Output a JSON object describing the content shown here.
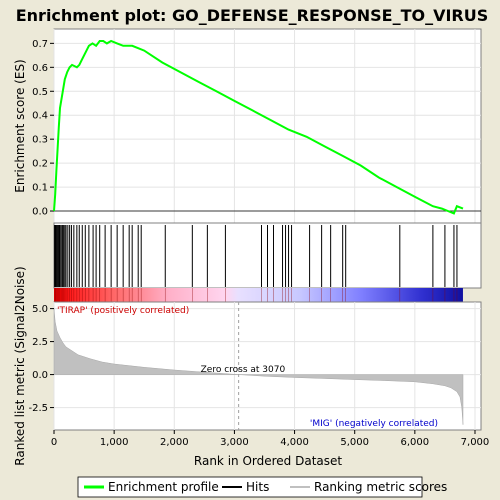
{
  "chart_data": {
    "type": "line",
    "title": "Enrichment plot: GO_DEFENSE_RESPONSE_TO_VIRUS",
    "xlabel": "Rank in Ordered Dataset",
    "ylabel_top": "Enrichment score (ES)",
    "ylabel_bottom": "Ranked list metric (Signal2Noise)",
    "xlim": [
      0,
      7100
    ],
    "x_ticks": [
      0,
      1000,
      2000,
      3000,
      4000,
      5000,
      6000,
      7000
    ],
    "x_tick_labels": [
      "0",
      "1,000",
      "2,000",
      "3,000",
      "4,000",
      "5,000",
      "6,000",
      "7,000"
    ],
    "es_ylim": [
      -0.05,
      0.76
    ],
    "es_ticks": [
      0.0,
      0.1,
      0.2,
      0.3,
      0.4,
      0.5,
      0.6,
      0.7
    ],
    "es_tick_labels": [
      "0.0",
      "0.1",
      "0.2",
      "0.3",
      "0.4",
      "0.5",
      "0.6",
      "0.7"
    ],
    "metric_ylim": [
      -4.2,
      5.5
    ],
    "metric_ticks": [
      5.0,
      2.5,
      0.0,
      -2.5
    ],
    "metric_tick_labels": [
      "5.0",
      "2.5",
      "0.0",
      "-2.5"
    ],
    "grid": true,
    "legend_position": "bottom",
    "series": [
      {
        "name": "Enrichment profile",
        "color": "#00ff00",
        "x": [
          0,
          20,
          40,
          60,
          80,
          100,
          140,
          180,
          220,
          260,
          300,
          380,
          420,
          460,
          500,
          540,
          580,
          640,
          700,
          760,
          820,
          880,
          950,
          1050,
          1150,
          1300,
          1400,
          1500,
          1800,
          2100,
          2400,
          2700,
          3000,
          3300,
          3600,
          3900,
          4200,
          4500,
          4800,
          5100,
          5400,
          5700,
          6000,
          6300,
          6450,
          6550,
          6650,
          6700,
          6800
        ],
        "y": [
          0.0,
          0.07,
          0.17,
          0.26,
          0.35,
          0.43,
          0.49,
          0.55,
          0.58,
          0.6,
          0.61,
          0.6,
          0.61,
          0.63,
          0.65,
          0.67,
          0.69,
          0.7,
          0.69,
          0.71,
          0.71,
          0.7,
          0.71,
          0.7,
          0.69,
          0.69,
          0.68,
          0.67,
          0.62,
          0.58,
          0.54,
          0.5,
          0.46,
          0.42,
          0.38,
          0.34,
          0.31,
          0.27,
          0.23,
          0.19,
          0.14,
          0.1,
          0.06,
          0.02,
          0.01,
          0.0,
          -0.01,
          0.02,
          0.01
        ]
      },
      {
        "name": "Hits",
        "color": "#000000",
        "x": [
          10,
          20,
          30,
          40,
          55,
          70,
          85,
          100,
          120,
          140,
          160,
          180,
          200,
          230,
          260,
          290,
          330,
          380,
          420,
          470,
          520,
          580,
          650,
          700,
          760,
          850,
          950,
          1050,
          1150,
          1250,
          1300,
          1400,
          1450,
          1850,
          2300,
          2550,
          2850,
          3450,
          3550,
          3650,
          3800,
          3850,
          3900,
          3950,
          4250,
          4450,
          4600,
          4800,
          4850,
          5750,
          6300,
          6500,
          6650,
          6700
        ]
      },
      {
        "name": "Ranking metric scores",
        "color": "#c0c0c0",
        "x": [
          0,
          20,
          50,
          100,
          150,
          200,
          300,
          400,
          600,
          800,
          1000,
          1500,
          2000,
          2500,
          3070,
          3500,
          4000,
          4500,
          5000,
          5500,
          6000,
          6300,
          6500,
          6600,
          6700,
          6750,
          6780,
          6800
        ],
        "y": [
          5.0,
          4.0,
          3.3,
          2.8,
          2.4,
          2.1,
          1.8,
          1.5,
          1.2,
          0.95,
          0.8,
          0.55,
          0.35,
          0.18,
          0.0,
          -0.12,
          -0.22,
          -0.3,
          -0.38,
          -0.46,
          -0.55,
          -0.7,
          -0.85,
          -1.0,
          -1.3,
          -1.7,
          -2.5,
          -3.8
        ]
      }
    ],
    "zero_cross_x": 3070,
    "annotations": {
      "positive": "'TIRAP' (positively correlated)",
      "zero_cross": "Zero cross at 3070",
      "negative": "'MIG' (negatively correlated)"
    },
    "colors": {
      "positive_annotation": "#cc0000",
      "negative_annotation": "#0000cc",
      "zero_cross_annotation": "#000000"
    },
    "legend": {
      "items": [
        {
          "label": "Enrichment profile",
          "color": "#00ff00"
        },
        {
          "label": "Hits",
          "color": "#000000"
        },
        {
          "label": "Ranking metric scores",
          "color": "#c0c0c0"
        }
      ]
    }
  }
}
